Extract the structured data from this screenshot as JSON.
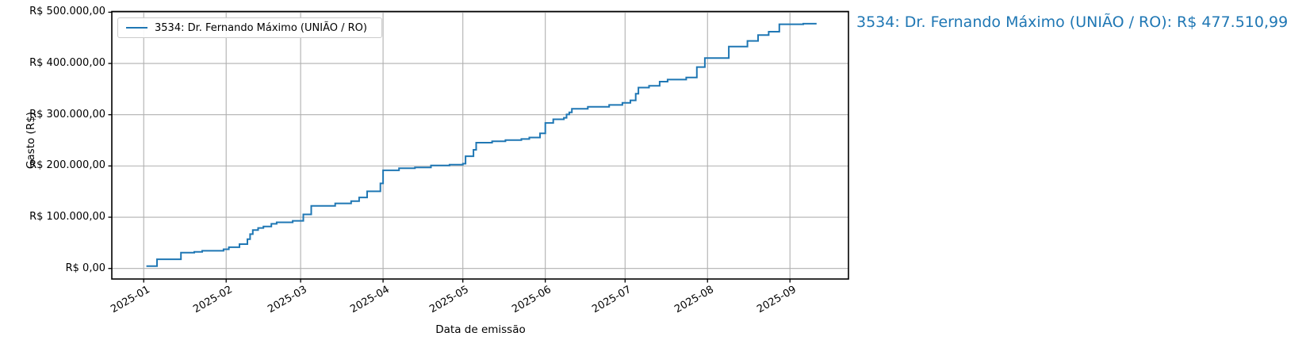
{
  "chart": {
    "ylabel": "Gasto (R$)",
    "xlabel": "Data de emissão",
    "legend_label": "3534: Dr. Fernando Máximo (UNIÃO / RO)",
    "annotation": "3534: Dr. Fernando Máximo (UNIÃO / RO): R$ 477.510,99",
    "line_color": "#1f77b4",
    "annotation_color": "#1f77b4",
    "grid_color": "#b0b0b0",
    "spine_color": "#000000"
  },
  "chart_data": {
    "type": "line",
    "step_mode": "post",
    "title": "",
    "xlabel": "Data de emissão",
    "ylabel": "Gasto (R$)",
    "legend_position": "upper left",
    "grid": true,
    "series_name": "3534: Dr. Fernando Máximo (UNIÃO / RO)",
    "final_total": 477510.99,
    "final_total_label": "R$ 477.510,99",
    "x_tick_labels": [
      "2025-01",
      "2025-02",
      "2025-03",
      "2025-04",
      "2025-05",
      "2025-06",
      "2025-07",
      "2025-08",
      "2025-09"
    ],
    "y_tick_values": [
      0,
      100000,
      200000,
      300000,
      400000,
      500000
    ],
    "y_tick_labels": [
      "R$ 0,00",
      "R$ 100.000,00",
      "R$ 200.000,00",
      "R$ 300.000,00",
      "R$ 400.000,00",
      "R$ 500.000,00"
    ],
    "xlim": [
      "2024-12-20",
      "2025-09-23"
    ],
    "ylim": [
      -21000,
      502000
    ],
    "points": [
      [
        "2025-01-02",
        4500
      ],
      [
        "2025-01-06",
        18000
      ],
      [
        "2025-01-15",
        31000
      ],
      [
        "2025-01-20",
        32500
      ],
      [
        "2025-01-23",
        34500
      ],
      [
        "2025-01-31",
        37500
      ],
      [
        "2025-02-02",
        41500
      ],
      [
        "2025-02-06",
        47500
      ],
      [
        "2025-02-09",
        57000
      ],
      [
        "2025-02-10",
        67000
      ],
      [
        "2025-02-11",
        75000
      ],
      [
        "2025-02-13",
        79000
      ],
      [
        "2025-02-15",
        82000
      ],
      [
        "2025-02-18",
        87000
      ],
      [
        "2025-02-20",
        90000
      ],
      [
        "2025-02-26",
        93000
      ],
      [
        "2025-03-02",
        105500
      ],
      [
        "2025-03-05",
        122000
      ],
      [
        "2025-03-14",
        127000
      ],
      [
        "2025-03-20",
        131500
      ],
      [
        "2025-03-23",
        138500
      ],
      [
        "2025-03-26",
        150500
      ],
      [
        "2025-03-31",
        166000
      ],
      [
        "2025-04-01",
        191500
      ],
      [
        "2025-04-07",
        195500
      ],
      [
        "2025-04-13",
        197000
      ],
      [
        "2025-04-19",
        201000
      ],
      [
        "2025-04-26",
        202500
      ],
      [
        "2025-05-01",
        204500
      ],
      [
        "2025-05-02",
        219000
      ],
      [
        "2025-05-05",
        231500
      ],
      [
        "2025-05-06",
        245500
      ],
      [
        "2025-05-12",
        248000
      ],
      [
        "2025-05-17",
        250500
      ],
      [
        "2025-05-23",
        252500
      ],
      [
        "2025-05-26",
        255500
      ],
      [
        "2025-05-30",
        263500
      ],
      [
        "2025-06-01",
        284000
      ],
      [
        "2025-06-04",
        291000
      ],
      [
        "2025-06-08",
        294000
      ],
      [
        "2025-06-09",
        300500
      ],
      [
        "2025-06-10",
        304500
      ],
      [
        "2025-06-11",
        311500
      ],
      [
        "2025-06-17",
        315500
      ],
      [
        "2025-06-25",
        319000
      ],
      [
        "2025-06-30",
        323000
      ],
      [
        "2025-07-03",
        328000
      ],
      [
        "2025-07-05",
        341000
      ],
      [
        "2025-07-06",
        353000
      ],
      [
        "2025-07-10",
        356500
      ],
      [
        "2025-07-14",
        364500
      ],
      [
        "2025-07-17",
        368500
      ],
      [
        "2025-07-24",
        372500
      ],
      [
        "2025-07-28",
        393000
      ],
      [
        "2025-07-31",
        410500
      ],
      [
        "2025-08-09",
        433000
      ],
      [
        "2025-08-16",
        444000
      ],
      [
        "2025-08-20",
        455500
      ],
      [
        "2025-08-24",
        462000
      ],
      [
        "2025-08-28",
        476500
      ],
      [
        "2025-09-06",
        477510.99
      ],
      [
        "2025-09-11",
        477510.99
      ]
    ]
  }
}
